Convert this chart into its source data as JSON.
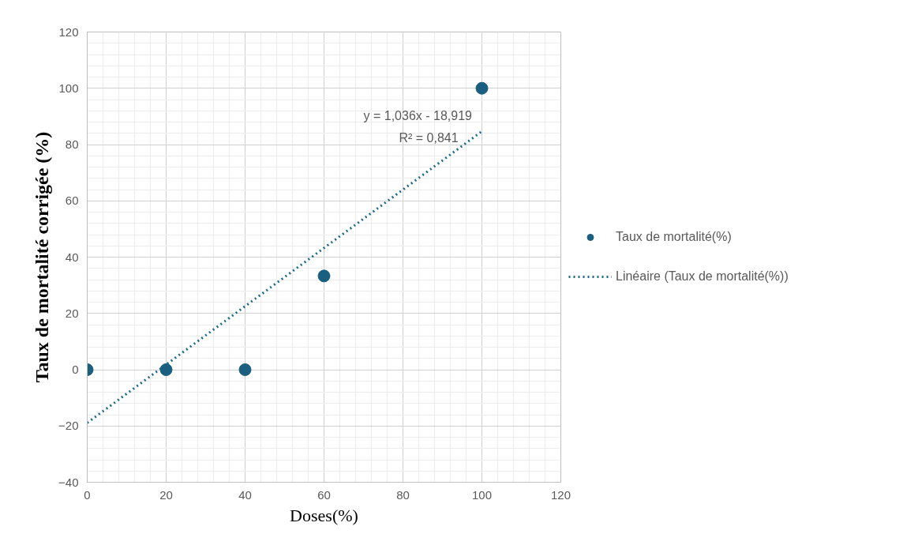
{
  "chart_data": {
    "type": "scatter",
    "xlabel": "Doses(%)",
    "ylabel": "Taux de mortalité corrigée (%)",
    "x": [
      0,
      20,
      40,
      60,
      100
    ],
    "series": [
      {
        "name": "Taux de mortalité(%)",
        "marker": "circle",
        "color": "#1a5e80",
        "values": [
          0,
          0,
          0,
          33.3,
          100
        ]
      },
      {
        "name": "Linéaire (Taux de mortalité(%))",
        "type": "line",
        "line_style": "dotted",
        "color": "#1a6a8a",
        "x": [
          0,
          100
        ],
        "values": [
          -18.9,
          84.7
        ]
      }
    ],
    "xlim": [
      0,
      120
    ],
    "ylim": [
      -40,
      120
    ],
    "xticks": [
      0,
      20,
      40,
      60,
      80,
      100,
      120
    ],
    "yticks": [
      -40,
      -20,
      0,
      20,
      40,
      60,
      80,
      100,
      120
    ],
    "grid": true,
    "legend": "right",
    "annotations": [
      "y = 1,036x - 18,919",
      "R² = 0,841"
    ]
  }
}
